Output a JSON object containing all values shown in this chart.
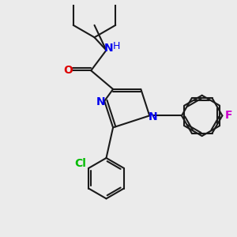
{
  "background_color": "#ebebeb",
  "bond_color": "#1a1a1a",
  "bond_width": 1.5,
  "N_color": "#0000ee",
  "O_color": "#dd0000",
  "Cl_color": "#00bb00",
  "F_color": "#cc00cc",
  "font_size": 10,
  "figsize": [
    3.0,
    3.0
  ],
  "dpi": 100,
  "xlim": [
    -3.2,
    3.8
  ],
  "ylim": [
    -3.5,
    3.2
  ]
}
